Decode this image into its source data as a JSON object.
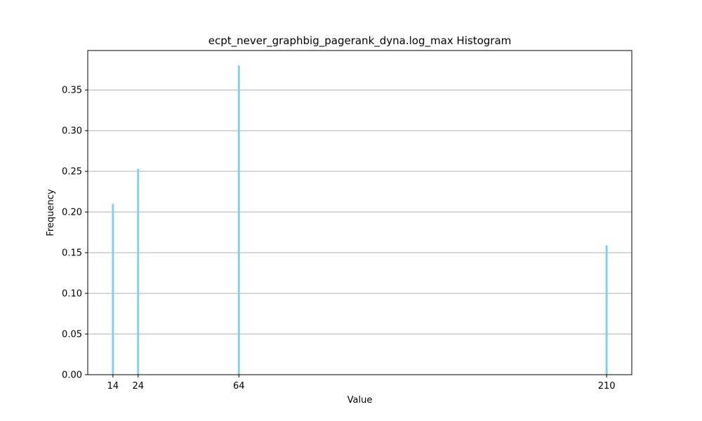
{
  "chart_data": {
    "type": "bar",
    "title": "ecpt_never_graphbig_pagerank_dyna.log_max Histogram",
    "xlabel": "Value",
    "ylabel": "Frequency",
    "x": [
      14,
      24,
      64,
      210
    ],
    "values": [
      0.21,
      0.253,
      0.38,
      0.159
    ],
    "xlim": [
      4,
      220
    ],
    "ylim": [
      0,
      0.3985
    ],
    "xticks": [
      14,
      24,
      64,
      210
    ],
    "xtick_labels": [
      "14",
      "24",
      "64",
      "210"
    ],
    "yticks": [
      0.0,
      0.05,
      0.1,
      0.15,
      0.2,
      0.25,
      0.3,
      0.35
    ],
    "ytick_labels": [
      "0.00",
      "0.05",
      "0.10",
      "0.15",
      "0.20",
      "0.25",
      "0.30",
      "0.35"
    ],
    "grid": "y",
    "bar_color": "#87ceeb",
    "grid_color": "#b0b0b0"
  }
}
